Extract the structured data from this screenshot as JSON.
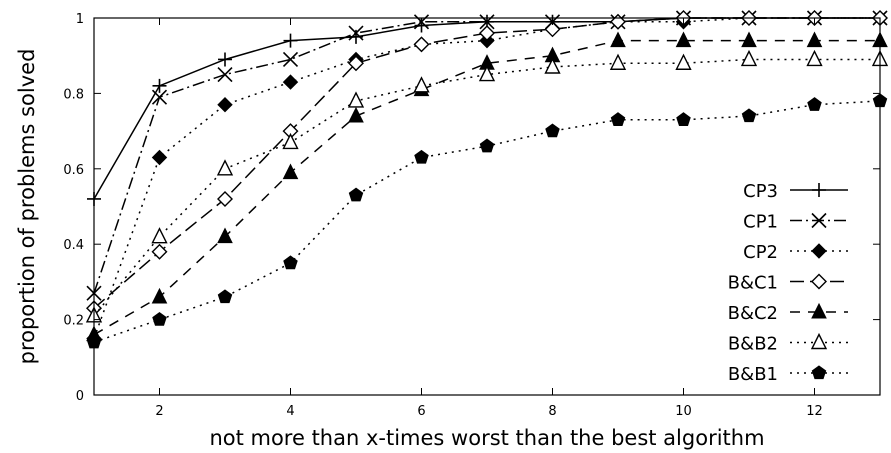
{
  "chart_data": {
    "type": "line",
    "title": "",
    "xlabel": "not more than x-times worst than the best algorithm",
    "ylabel": "proportion of problems solved",
    "xlim": [
      1,
      13
    ],
    "ylim": [
      0,
      1
    ],
    "x_ticks": [
      2,
      4,
      6,
      8,
      10,
      12
    ],
    "y_ticks": [
      0,
      0.2,
      0.4,
      0.6,
      0.8,
      1
    ],
    "y_tick_labels": [
      "0",
      "0.2",
      "0.4",
      "0.6",
      "0.8",
      "1"
    ],
    "grid": false,
    "legend_position": "right",
    "x": [
      1,
      2,
      3,
      4,
      5,
      6,
      7,
      8,
      9,
      10,
      11,
      12,
      13
    ],
    "series": [
      {
        "name": "CP3",
        "marker": "plus",
        "dash": "solid",
        "values": [
          0.52,
          0.82,
          0.89,
          0.94,
          0.95,
          0.98,
          0.99,
          0.99,
          0.99,
          1.0,
          1.0,
          1.0,
          1.0
        ]
      },
      {
        "name": "CP1",
        "marker": "cross",
        "dash": "dash-dot",
        "values": [
          0.27,
          0.79,
          0.85,
          0.89,
          0.96,
          0.99,
          0.99,
          0.99,
          0.99,
          1.0,
          1.0,
          1.0,
          1.0
        ]
      },
      {
        "name": "CP2",
        "marker": "filled-diamond",
        "dash": "dotted",
        "values": [
          0.15,
          0.63,
          0.77,
          0.83,
          0.89,
          0.93,
          0.94,
          0.97,
          0.99,
          0.99,
          1.0,
          1.0,
          1.0
        ]
      },
      {
        "name": "B&C1",
        "marker": "open-diamond",
        "dash": "long-dash",
        "values": [
          0.23,
          0.38,
          0.52,
          0.7,
          0.88,
          0.93,
          0.96,
          0.97,
          0.99,
          1.0,
          1.0,
          1.0,
          1.0
        ]
      },
      {
        "name": "B&C2",
        "marker": "filled-triangle",
        "dash": "dashed",
        "values": [
          0.16,
          0.26,
          0.42,
          0.59,
          0.74,
          0.81,
          0.88,
          0.9,
          0.94,
          0.94,
          0.94,
          0.94,
          0.94
        ]
      },
      {
        "name": "B&B2",
        "marker": "open-triangle",
        "dash": "dotted",
        "values": [
          0.21,
          0.42,
          0.6,
          0.67,
          0.78,
          0.82,
          0.85,
          0.87,
          0.88,
          0.88,
          0.89,
          0.89,
          0.89
        ]
      },
      {
        "name": "B&B1",
        "marker": "filled-pentagon",
        "dash": "dotted",
        "values": [
          0.14,
          0.2,
          0.26,
          0.35,
          0.53,
          0.63,
          0.66,
          0.7,
          0.73,
          0.73,
          0.74,
          0.77,
          0.78
        ]
      }
    ]
  }
}
